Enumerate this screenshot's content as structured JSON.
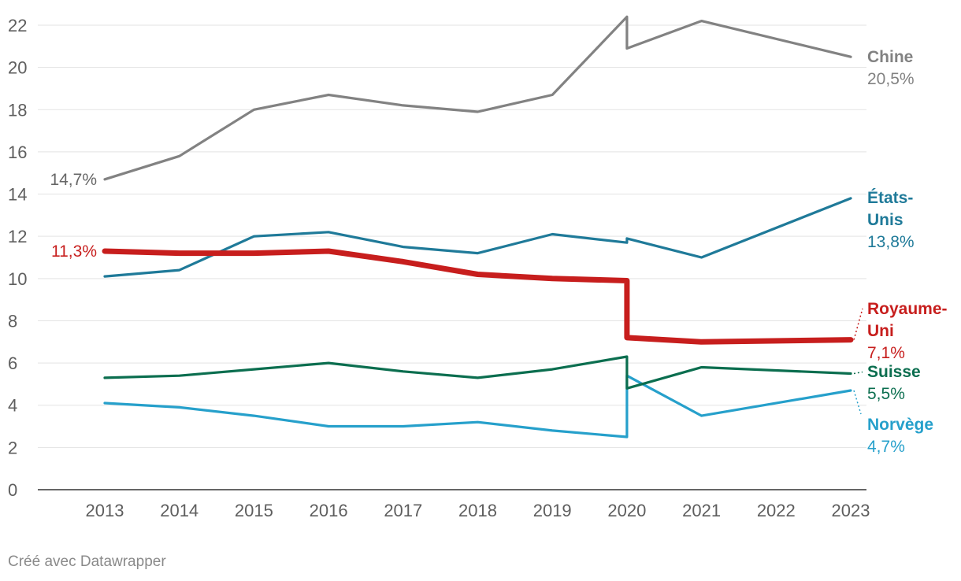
{
  "chart_data": {
    "type": "line",
    "x": [
      "2013",
      "2014",
      "2015",
      "2016",
      "2017",
      "2018",
      "2019",
      "2020",
      "2021",
      "2022",
      "2023"
    ],
    "ylim": [
      0,
      22
    ],
    "yticks": [
      0,
      2,
      4,
      6,
      8,
      10,
      12,
      14,
      16,
      18,
      20,
      22
    ],
    "grid": true,
    "legend": "direct labels at line ends",
    "series": [
      {
        "name": "Chine",
        "color": "#828282",
        "points": [
          [
            2013,
            14.7
          ],
          [
            2014,
            15.8
          ],
          [
            2015,
            18.0
          ],
          [
            2016,
            18.7
          ],
          [
            2017,
            18.2
          ],
          [
            2018,
            17.9
          ],
          [
            2019,
            18.7
          ],
          [
            2020,
            22.4
          ],
          [
            2020,
            20.9
          ],
          [
            2021,
            22.2
          ],
          [
            2023,
            20.5
          ]
        ],
        "start_label": "14,7%",
        "end_name": [
          "Chine"
        ],
        "end_value": "20,5%"
      },
      {
        "name": "États-Unis",
        "color": "#1f7a99",
        "points": [
          [
            2013,
            10.1
          ],
          [
            2014,
            10.4
          ],
          [
            2015,
            12.0
          ],
          [
            2016,
            12.2
          ],
          [
            2017,
            11.5
          ],
          [
            2018,
            11.2
          ],
          [
            2019,
            12.1
          ],
          [
            2020,
            11.7
          ],
          [
            2020,
            11.9
          ],
          [
            2021,
            11.0
          ],
          [
            2023,
            13.8
          ]
        ],
        "end_name": [
          "États-",
          "Unis"
        ],
        "end_value": "13,8%"
      },
      {
        "name": "Royaume-Uni",
        "color": "#c71e1d",
        "points": [
          [
            2013,
            11.3
          ],
          [
            2014,
            11.2
          ],
          [
            2015,
            11.2
          ],
          [
            2016,
            11.3
          ],
          [
            2017,
            10.8
          ],
          [
            2018,
            10.2
          ],
          [
            2019,
            10.0
          ],
          [
            2020,
            9.9
          ],
          [
            2020,
            7.2
          ],
          [
            2021,
            7.0
          ],
          [
            2023,
            7.1
          ]
        ],
        "start_label": "11,3%",
        "end_name": [
          "Royaume-",
          "Uni"
        ],
        "end_value": "7,1%"
      },
      {
        "name": "Suisse",
        "color": "#0b6e4f",
        "points": [
          [
            2013,
            5.3
          ],
          [
            2014,
            5.4
          ],
          [
            2015,
            5.7
          ],
          [
            2016,
            6.0
          ],
          [
            2017,
            5.6
          ],
          [
            2018,
            5.3
          ],
          [
            2019,
            5.7
          ],
          [
            2020,
            6.3
          ],
          [
            2020,
            4.8
          ],
          [
            2021,
            5.8
          ],
          [
            2023,
            5.5
          ]
        ],
        "end_name": [
          "Suisse"
        ],
        "end_value": "5,5%"
      },
      {
        "name": "Norvège",
        "color": "#26a0cb",
        "points": [
          [
            2013,
            4.1
          ],
          [
            2014,
            3.9
          ],
          [
            2015,
            3.5
          ],
          [
            2016,
            3.0
          ],
          [
            2017,
            3.0
          ],
          [
            2018,
            3.2
          ],
          [
            2019,
            2.8
          ],
          [
            2020,
            2.5
          ],
          [
            2020,
            5.4
          ],
          [
            2021,
            3.5
          ],
          [
            2023,
            4.7
          ]
        ],
        "end_name": [
          "Norvège"
        ],
        "end_value": "4,7%"
      }
    ]
  },
  "footer": {
    "credit": "Créé avec Datawrapper"
  }
}
